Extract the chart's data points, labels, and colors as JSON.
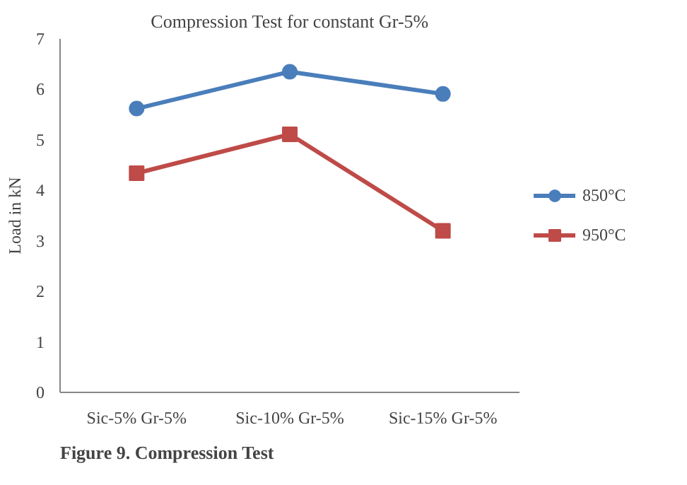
{
  "chart_data": {
    "type": "line",
    "title": "Compression Test for constant Gr-5%",
    "ylabel": "Load in kN",
    "categories": [
      "Sic-5% Gr-5%",
      "Sic-10% Gr-5%",
      "Sic-15% Gr-5%"
    ],
    "series": [
      {
        "name": "850°C",
        "color": "#4a7ebb",
        "marker": "circle",
        "values": [
          5.62,
          6.35,
          5.91
        ]
      },
      {
        "name": "950°C",
        "color": "#be4b48",
        "marker": "square",
        "values": [
          4.34,
          5.11,
          3.2
        ]
      }
    ],
    "ylim": [
      0,
      7
    ],
    "yticks": [
      0,
      1,
      2,
      3,
      4,
      5,
      6,
      7
    ],
    "grid": false,
    "legend": "right",
    "annotations": [
      "Figure 9. Compression Test"
    ]
  }
}
